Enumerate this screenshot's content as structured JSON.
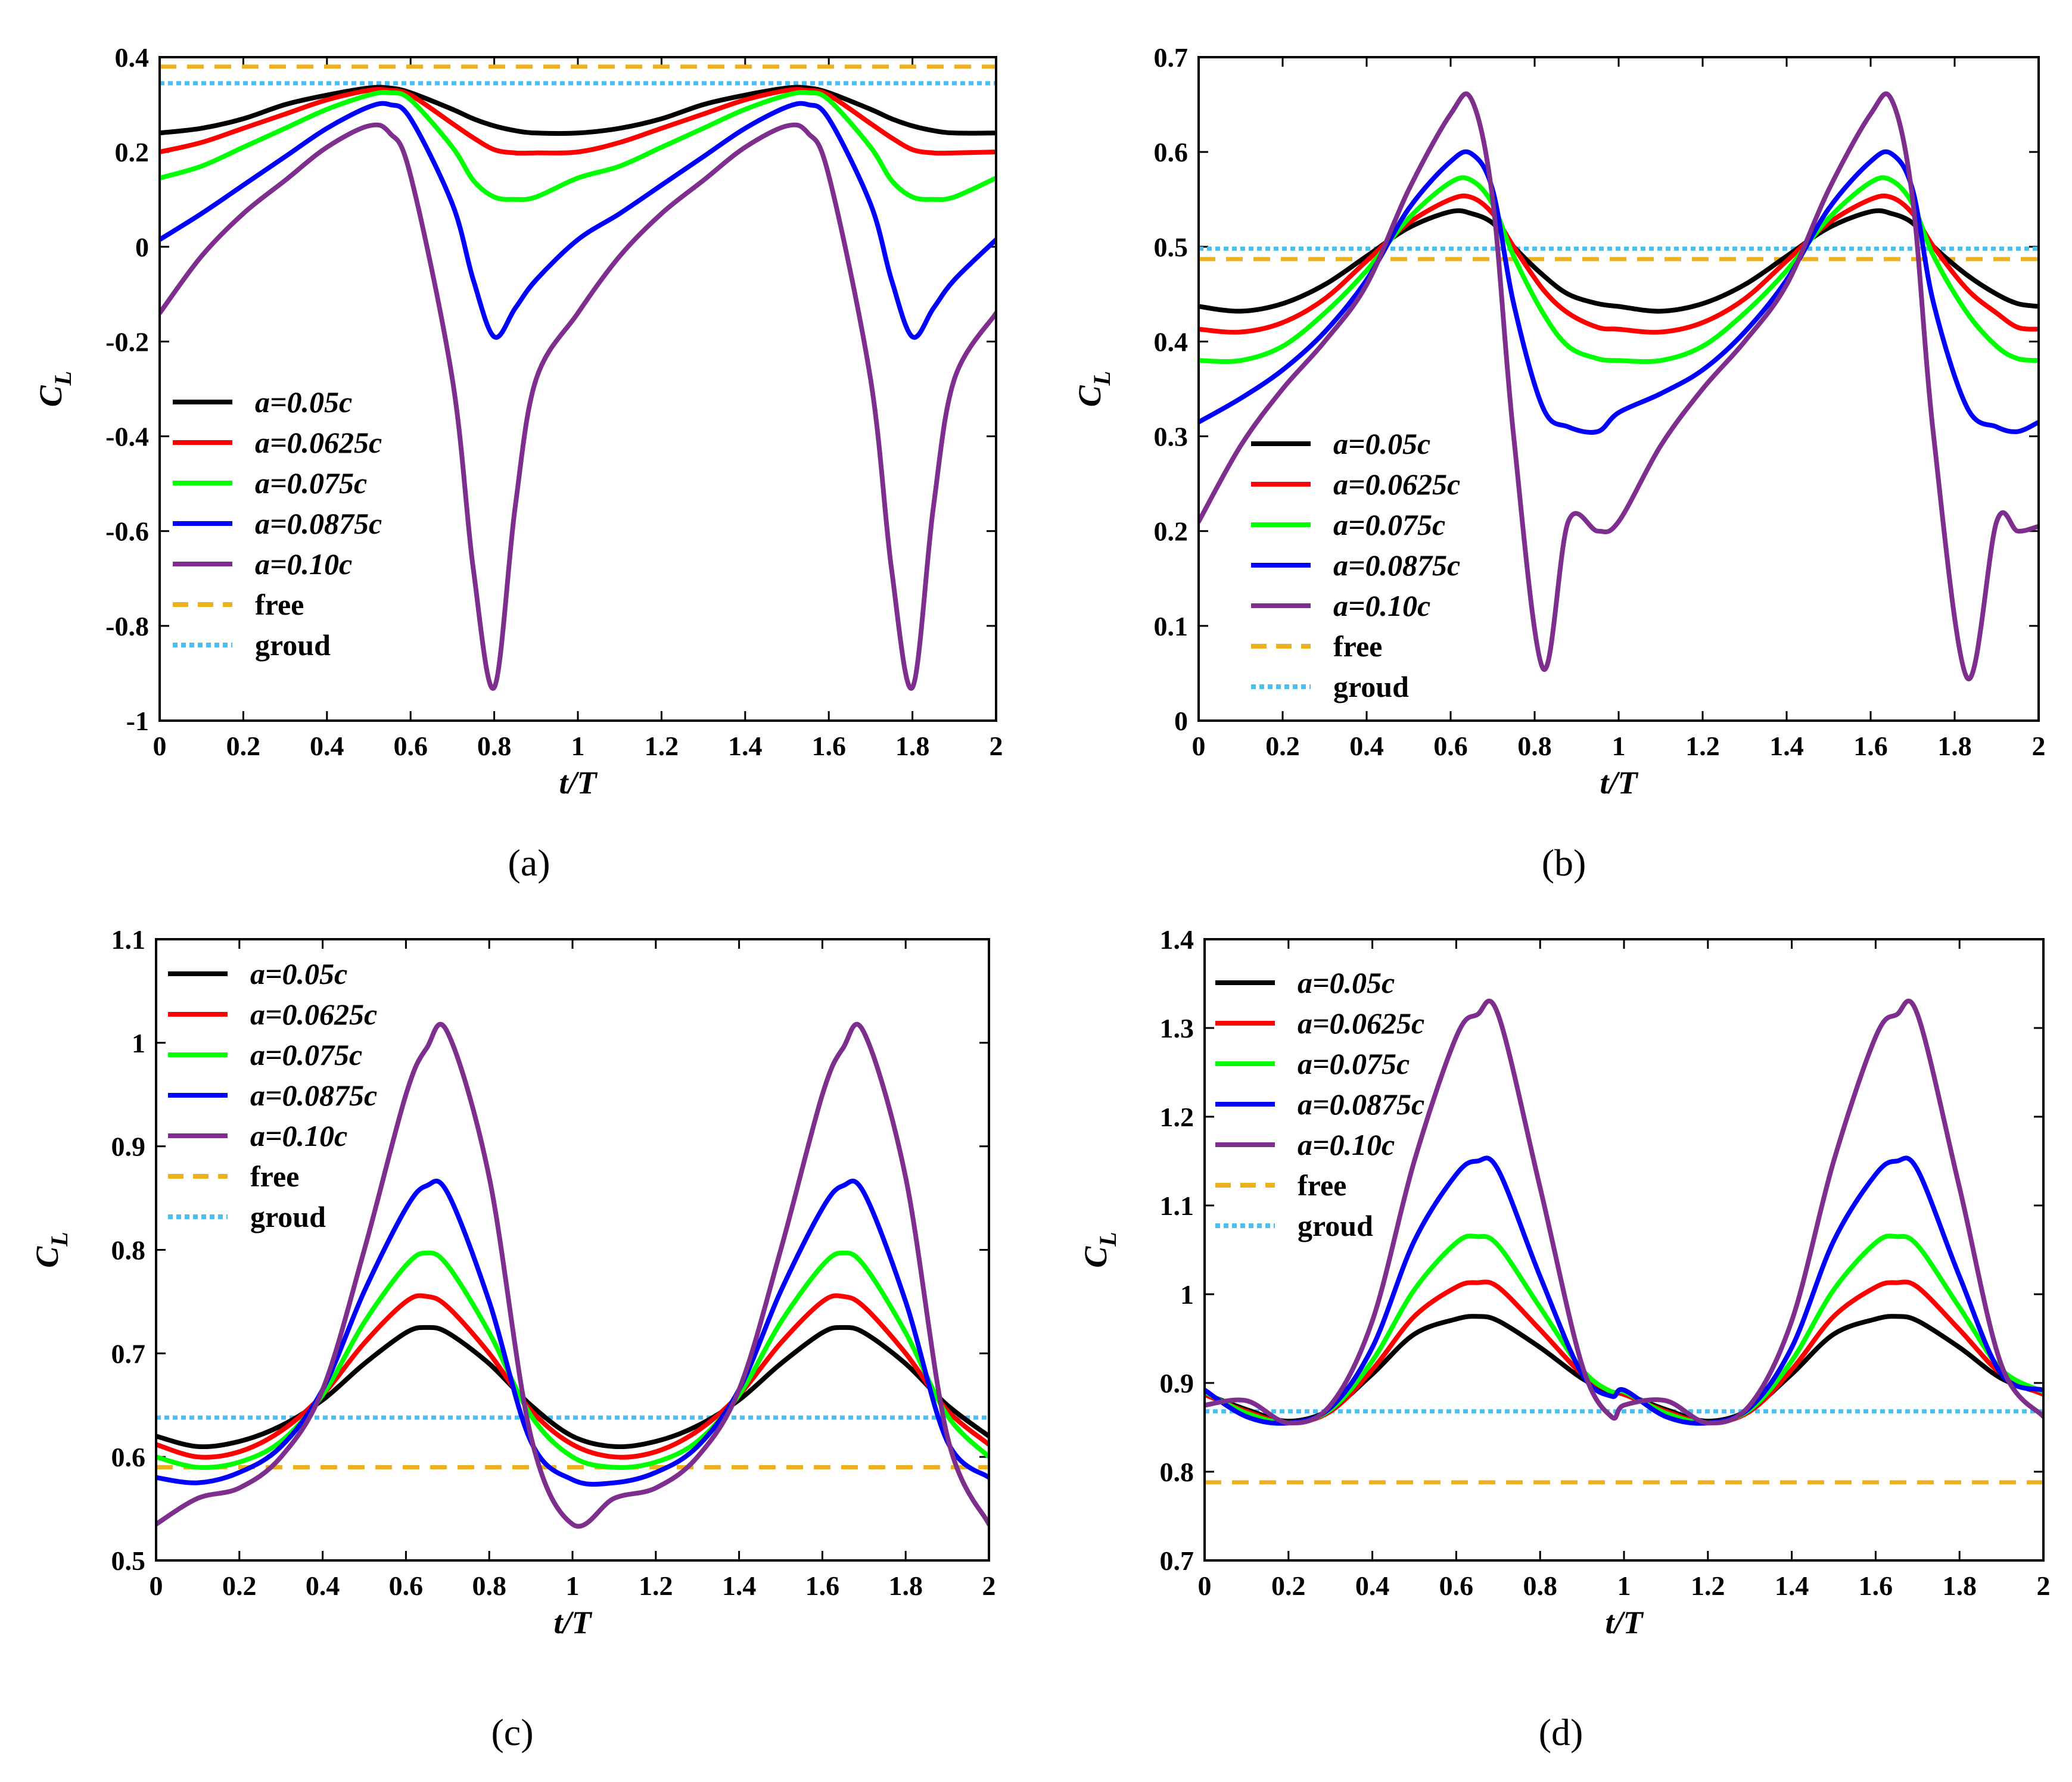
{
  "figure": {
    "legend_entries": [
      {
        "label": "a=0.05c",
        "color": "#000000",
        "style": "solid"
      },
      {
        "label": "a=0.0625c",
        "color": "#ff0000",
        "style": "solid"
      },
      {
        "label": "a=0.075c",
        "color": "#00ff00",
        "style": "solid"
      },
      {
        "label": "a=0.0875c",
        "color": "#0000ff",
        "style": "solid"
      },
      {
        "label": "a=0.10c",
        "color": "#7e2f8e",
        "style": "solid"
      },
      {
        "label": "free",
        "color": "#edb120",
        "style": "dashed"
      },
      {
        "label": "groud",
        "color": "#4dbeee",
        "style": "dotted"
      }
    ]
  },
  "chart_data": [
    {
      "type": "line",
      "panel": "(a)",
      "caption": "(a)",
      "xlabel": "t/T",
      "ylabel": "C_L",
      "ylabel_main": "C",
      "ylabel_sub": "L",
      "xlim": [
        0,
        2
      ],
      "ylim": [
        -1,
        0.4
      ],
      "xticks": [
        0,
        0.2,
        0.4,
        0.6,
        0.8,
        1,
        1.2,
        1.4,
        1.6,
        1.8,
        2
      ],
      "xtick_labels": [
        "0",
        "0.2",
        "0.4",
        "0.6",
        "0.8",
        "1",
        "1.2",
        "1.4",
        "1.6",
        "1.8",
        "2"
      ],
      "yticks": [
        -1,
        -0.8,
        -0.6,
        -0.4,
        -0.2,
        0,
        0.2,
        0.4
      ],
      "ytick_labels": [
        "-1",
        "-0.8",
        "-0.6",
        "-0.4",
        "-0.2",
        "0",
        "0.2",
        "0.4"
      ],
      "legend_position": "bottom-left",
      "x": [
        0,
        0.1,
        0.2,
        0.3,
        0.4,
        0.5,
        0.55,
        0.6,
        0.7,
        0.75,
        0.8,
        0.85,
        0.9,
        1.0,
        1.1,
        1.2,
        1.3,
        1.4,
        1.5,
        1.55,
        1.6,
        1.7,
        1.75,
        1.8,
        1.85,
        1.9,
        2.0
      ],
      "series": [
        {
          "name": "a=0.05c",
          "values": [
            0.24,
            0.25,
            0.27,
            0.3,
            0.32,
            0.335,
            0.335,
            0.325,
            0.29,
            0.27,
            0.255,
            0.245,
            0.24,
            0.24,
            0.25,
            0.27,
            0.3,
            0.32,
            0.335,
            0.335,
            0.325,
            0.29,
            0.27,
            0.255,
            0.245,
            0.24,
            0.24
          ]
        },
        {
          "name": "a=0.0625c",
          "values": [
            0.2,
            0.22,
            0.25,
            0.28,
            0.31,
            0.33,
            0.33,
            0.32,
            0.26,
            0.23,
            0.205,
            0.198,
            0.198,
            0.2,
            0.22,
            0.25,
            0.28,
            0.31,
            0.33,
            0.33,
            0.32,
            0.26,
            0.23,
            0.205,
            0.198,
            0.198,
            0.2
          ]
        },
        {
          "name": "a=0.075c",
          "values": [
            0.145,
            0.17,
            0.21,
            0.25,
            0.29,
            0.32,
            0.325,
            0.31,
            0.21,
            0.14,
            0.105,
            0.1,
            0.105,
            0.145,
            0.17,
            0.21,
            0.25,
            0.29,
            0.32,
            0.325,
            0.31,
            0.21,
            0.14,
            0.105,
            0.1,
            0.105,
            0.145
          ]
        },
        {
          "name": "a=0.0875c",
          "values": [
            0.015,
            0.07,
            0.13,
            0.19,
            0.25,
            0.295,
            0.3,
            0.27,
            0.09,
            -0.07,
            -0.19,
            -0.13,
            -0.07,
            0.015,
            0.07,
            0.13,
            0.19,
            0.25,
            0.295,
            0.3,
            0.27,
            0.09,
            -0.07,
            -0.19,
            -0.13,
            -0.07,
            0.015
          ]
        },
        {
          "name": "a=0.10c",
          "values": [
            -0.14,
            -0.02,
            0.07,
            0.14,
            0.21,
            0.255,
            0.24,
            0.15,
            -0.28,
            -0.68,
            -0.93,
            -0.55,
            -0.28,
            -0.14,
            -0.02,
            0.07,
            0.14,
            0.21,
            0.255,
            0.24,
            0.15,
            -0.28,
            -0.68,
            -0.93,
            -0.55,
            -0.28,
            -0.14
          ]
        }
      ],
      "hlines": [
        {
          "name": "free",
          "y": 0.38
        },
        {
          "name": "groud",
          "y": 0.345
        }
      ]
    },
    {
      "type": "line",
      "panel": "(b)",
      "caption": "(b)",
      "xlabel": "t/T",
      "ylabel": "C_L",
      "ylabel_main": "C",
      "ylabel_sub": "L",
      "xlim": [
        0,
        2
      ],
      "ylim": [
        0,
        0.7
      ],
      "xticks": [
        0,
        0.2,
        0.4,
        0.6,
        0.8,
        1,
        1.2,
        1.4,
        1.6,
        1.8,
        2
      ],
      "xtick_labels": [
        "0",
        "0.2",
        "0.4",
        "0.6",
        "0.8",
        "1",
        "1.2",
        "1.4",
        "1.6",
        "1.8",
        "2"
      ],
      "yticks": [
        0,
        0.1,
        0.2,
        0.3,
        0.4,
        0.5,
        0.6,
        0.7
      ],
      "ytick_labels": [
        "0",
        "0.1",
        "0.2",
        "0.3",
        "0.4",
        "0.5",
        "0.6",
        "0.7"
      ],
      "legend_position": "bottom-left",
      "x": [
        0,
        0.1,
        0.2,
        0.3,
        0.4,
        0.5,
        0.6,
        0.65,
        0.7,
        0.75,
        0.82,
        0.88,
        0.95,
        1.0,
        1.1,
        1.2,
        1.3,
        1.4,
        1.5,
        1.6,
        1.65,
        1.7,
        1.75,
        1.83,
        1.9,
        1.95,
        2.0
      ],
      "series": [
        {
          "name": "a=0.05c",
          "values": [
            0.437,
            0.432,
            0.44,
            0.46,
            0.49,
            0.52,
            0.537,
            0.535,
            0.525,
            0.5,
            0.47,
            0.45,
            0.44,
            0.437,
            0.432,
            0.44,
            0.46,
            0.49,
            0.52,
            0.537,
            0.535,
            0.525,
            0.5,
            0.47,
            0.45,
            0.44,
            0.437
          ]
        },
        {
          "name": "a=0.0625c",
          "values": [
            0.413,
            0.41,
            0.42,
            0.445,
            0.485,
            0.525,
            0.55,
            0.552,
            0.535,
            0.5,
            0.455,
            0.43,
            0.415,
            0.413,
            0.41,
            0.42,
            0.445,
            0.485,
            0.525,
            0.55,
            0.552,
            0.535,
            0.5,
            0.455,
            0.43,
            0.415,
            0.413
          ]
        },
        {
          "name": "a=0.075c",
          "values": [
            0.38,
            0.38,
            0.395,
            0.43,
            0.475,
            0.53,
            0.568,
            0.57,
            0.545,
            0.49,
            0.43,
            0.395,
            0.382,
            0.38,
            0.38,
            0.395,
            0.43,
            0.475,
            0.53,
            0.568,
            0.57,
            0.545,
            0.49,
            0.43,
            0.395,
            0.382,
            0.38
          ]
        },
        {
          "name": "a=0.0875c",
          "values": [
            0.315,
            0.34,
            0.37,
            0.41,
            0.465,
            0.54,
            0.59,
            0.598,
            0.56,
            0.44,
            0.33,
            0.31,
            0.305,
            0.325,
            0.345,
            0.37,
            0.41,
            0.465,
            0.54,
            0.59,
            0.598,
            0.56,
            0.44,
            0.33,
            0.31,
            0.305,
            0.315
          ]
        },
        {
          "name": "a=0.10c",
          "values": [
            0.21,
            0.29,
            0.35,
            0.4,
            0.46,
            0.56,
            0.64,
            0.655,
            0.55,
            0.3,
            0.055,
            0.21,
            0.2,
            0.21,
            0.29,
            0.35,
            0.4,
            0.46,
            0.56,
            0.64,
            0.655,
            0.55,
            0.3,
            0.045,
            0.21,
            0.2,
            0.205
          ]
        }
      ],
      "hlines": [
        {
          "name": "free",
          "y": 0.487
        },
        {
          "name": "groud",
          "y": 0.498
        }
      ]
    },
    {
      "type": "line",
      "panel": "(c)",
      "caption": "(c)",
      "xlabel": "t/T",
      "ylabel": "C_L",
      "ylabel_main": "C",
      "ylabel_sub": "L",
      "xlim": [
        0,
        2
      ],
      "ylim": [
        0.5,
        1.1
      ],
      "xticks": [
        0,
        0.2,
        0.4,
        0.6,
        0.8,
        1,
        1.2,
        1.4,
        1.6,
        1.8,
        2
      ],
      "xtick_labels": [
        "0",
        "0.2",
        "0.4",
        "0.6",
        "0.8",
        "1",
        "1.2",
        "1.4",
        "1.6",
        "1.8",
        "2"
      ],
      "yticks": [
        0.5,
        0.6,
        0.7,
        0.8,
        0.9,
        1,
        1.1
      ],
      "ytick_labels": [
        "0.5",
        "0.6",
        "0.7",
        "0.8",
        "0.9",
        "1",
        "1.1"
      ],
      "legend_position": "top-left",
      "x": [
        0,
        0.1,
        0.2,
        0.3,
        0.4,
        0.5,
        0.6,
        0.65,
        0.7,
        0.8,
        0.9,
        1.0,
        1.1,
        1.2,
        1.3,
        1.4,
        1.5,
        1.6,
        1.65,
        1.7,
        1.8,
        1.9,
        2.0
      ],
      "series": [
        {
          "name": "a=0.05c",
          "values": [
            0.62,
            0.61,
            0.615,
            0.63,
            0.655,
            0.69,
            0.72,
            0.725,
            0.72,
            0.69,
            0.65,
            0.62,
            0.61,
            0.615,
            0.63,
            0.655,
            0.69,
            0.72,
            0.725,
            0.72,
            0.69,
            0.65,
            0.62
          ]
        },
        {
          "name": "a=0.0625c",
          "values": [
            0.612,
            0.6,
            0.605,
            0.625,
            0.66,
            0.71,
            0.75,
            0.755,
            0.745,
            0.7,
            0.645,
            0.612,
            0.6,
            0.605,
            0.625,
            0.66,
            0.71,
            0.75,
            0.755,
            0.745,
            0.7,
            0.645,
            0.612
          ]
        },
        {
          "name": "a=0.075c",
          "values": [
            0.6,
            0.59,
            0.595,
            0.615,
            0.66,
            0.73,
            0.785,
            0.797,
            0.785,
            0.72,
            0.64,
            0.6,
            0.59,
            0.595,
            0.615,
            0.66,
            0.73,
            0.785,
            0.797,
            0.785,
            0.72,
            0.64,
            0.6
          ]
        },
        {
          "name": "a=0.0875c",
          "values": [
            0.58,
            0.575,
            0.585,
            0.61,
            0.665,
            0.76,
            0.84,
            0.862,
            0.855,
            0.75,
            0.615,
            0.578,
            0.575,
            0.585,
            0.61,
            0.665,
            0.76,
            0.84,
            0.862,
            0.855,
            0.75,
            0.615,
            0.58
          ]
        },
        {
          "name": "a=0.10c",
          "values": [
            0.535,
            0.56,
            0.57,
            0.6,
            0.665,
            0.8,
            0.95,
            0.995,
            1.01,
            0.87,
            0.62,
            0.535,
            0.56,
            0.57,
            0.6,
            0.665,
            0.8,
            0.95,
            0.995,
            1.01,
            0.87,
            0.62,
            0.535
          ]
        }
      ],
      "hlines": [
        {
          "name": "free",
          "y": 0.59
        },
        {
          "name": "groud",
          "y": 0.638
        }
      ]
    },
    {
      "type": "line",
      "panel": "(d)",
      "caption": "(d)",
      "xlabel": "t/T",
      "ylabel": "C_L",
      "ylabel_main": "C",
      "ylabel_sub": "L",
      "xlim": [
        0,
        2
      ],
      "ylim": [
        0.7,
        1.4
      ],
      "xticks": [
        0,
        0.2,
        0.4,
        0.6,
        0.8,
        1,
        1.2,
        1.4,
        1.6,
        1.8,
        2
      ],
      "xtick_labels": [
        "0",
        "0.2",
        "0.4",
        "0.6",
        "0.8",
        "1",
        "1.2",
        "1.4",
        "1.6",
        "1.8",
        "2"
      ],
      "yticks": [
        0.7,
        0.8,
        0.9,
        1,
        1.1,
        1.2,
        1.3,
        1.4
      ],
      "ytick_labels": [
        "0.7",
        "0.8",
        "0.9",
        "1",
        "1.1",
        "1.2",
        "1.3",
        "1.4"
      ],
      "legend_position": "top-left",
      "x": [
        0,
        0.1,
        0.2,
        0.3,
        0.4,
        0.5,
        0.6,
        0.65,
        0.7,
        0.8,
        0.9,
        0.97,
        1.0,
        1.1,
        1.2,
        1.3,
        1.4,
        1.5,
        1.6,
        1.65,
        1.7,
        1.8,
        1.9,
        2.0
      ],
      "series": [
        {
          "name": "a=0.05c",
          "values": [
            0.888,
            0.87,
            0.857,
            0.87,
            0.91,
            0.955,
            0.972,
            0.975,
            0.97,
            0.94,
            0.905,
            0.89,
            0.888,
            0.87,
            0.857,
            0.87,
            0.91,
            0.955,
            0.972,
            0.975,
            0.97,
            0.94,
            0.905,
            0.888
          ]
        },
        {
          "name": "a=0.0625c",
          "values": [
            0.887,
            0.868,
            0.855,
            0.868,
            0.915,
            0.975,
            1.008,
            1.013,
            1.008,
            0.96,
            0.91,
            0.89,
            0.887,
            0.868,
            0.855,
            0.868,
            0.915,
            0.975,
            1.008,
            1.013,
            1.008,
            0.96,
            0.91,
            0.887
          ]
        },
        {
          "name": "a=0.075c",
          "values": [
            0.89,
            0.866,
            0.855,
            0.87,
            0.925,
            1.005,
            1.058,
            1.065,
            1.055,
            0.985,
            0.915,
            0.89,
            0.89,
            0.866,
            0.855,
            0.87,
            0.925,
            1.005,
            1.058,
            1.065,
            1.055,
            0.985,
            0.915,
            0.89
          ]
        },
        {
          "name": "a=0.0875c",
          "values": [
            0.892,
            0.862,
            0.855,
            0.872,
            0.94,
            1.06,
            1.135,
            1.15,
            1.14,
            1.02,
            0.91,
            0.885,
            0.892,
            0.862,
            0.855,
            0.872,
            0.94,
            1.06,
            1.135,
            1.15,
            1.14,
            1.02,
            0.91,
            0.892
          ]
        },
        {
          "name": "a=0.10c",
          "values": [
            0.875,
            0.88,
            0.855,
            0.875,
            0.97,
            1.15,
            1.29,
            1.315,
            1.315,
            1.12,
            0.92,
            0.862,
            0.875,
            0.88,
            0.855,
            0.875,
            0.97,
            1.15,
            1.29,
            1.315,
            1.315,
            1.12,
            0.92,
            0.862
          ]
        }
      ],
      "hlines": [
        {
          "name": "free",
          "y": 0.788
        },
        {
          "name": "groud",
          "y": 0.868
        }
      ]
    }
  ]
}
